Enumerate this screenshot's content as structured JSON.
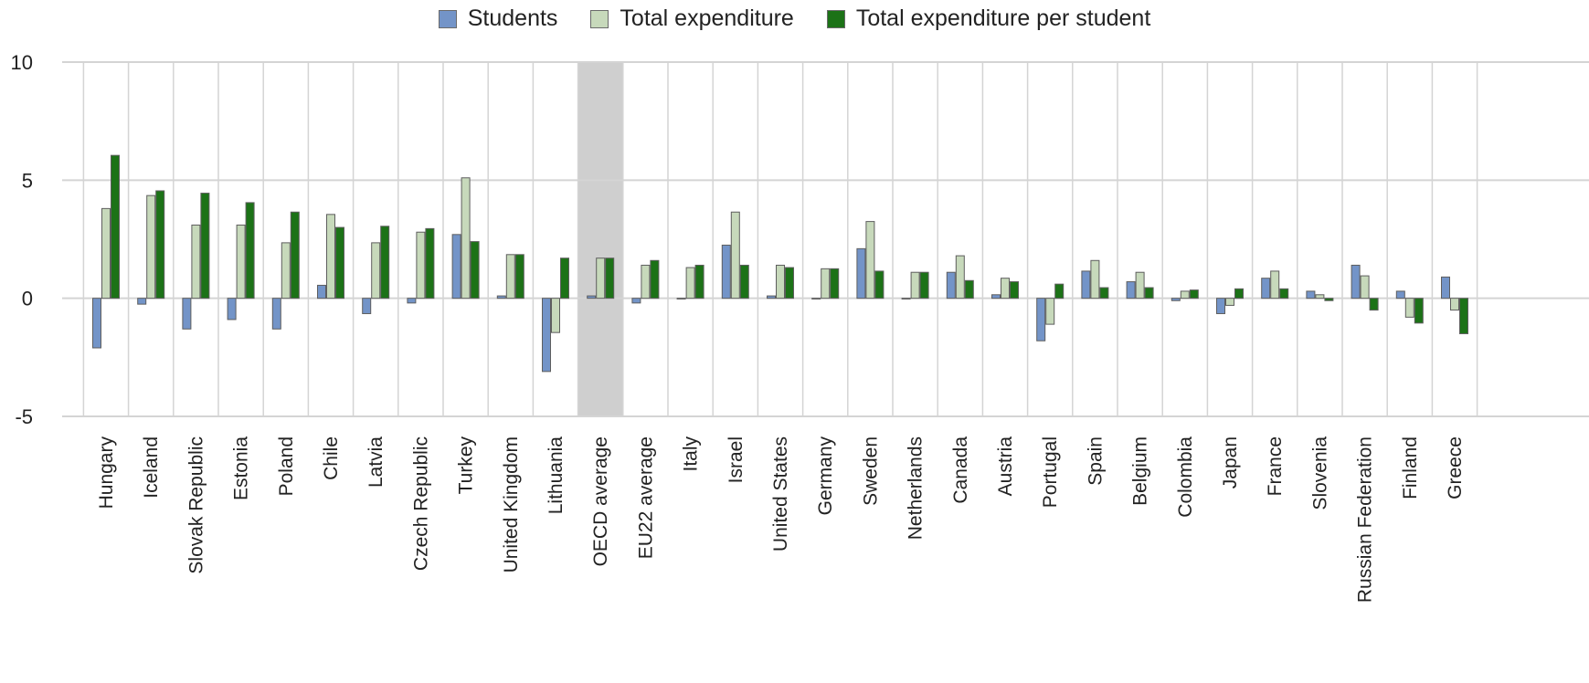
{
  "chart_data": {
    "type": "bar",
    "categories": [
      "Hungary",
      "Iceland",
      "Slovak Republic",
      "Estonia",
      "Poland",
      "Chile",
      "Latvia",
      "Czech Republic",
      "Turkey",
      "United Kingdom",
      "Lithuania",
      "OECD average",
      "EU22 average",
      "Italy",
      "Israel",
      "United States",
      "Germany",
      "Sweden",
      "Netherlands",
      "Canada",
      "Austria",
      "Portugal",
      "Spain",
      "Belgium",
      "Colombia",
      "Japan",
      "France",
      "Slovenia",
      "Russian Federation",
      "Finland",
      "Greece"
    ],
    "highlight_category": "OECD average",
    "series": [
      {
        "name": "Students",
        "color": "#7394c8",
        "values": [
          -2.1,
          -0.25,
          -1.3,
          -0.9,
          -1.3,
          0.55,
          -0.65,
          -0.2,
          2.7,
          0.1,
          -3.1,
          0.1,
          -0.2,
          0.0,
          2.25,
          0.1,
          0.0,
          2.1,
          0.0,
          1.1,
          0.15,
          -1.8,
          1.15,
          0.7,
          -0.1,
          -0.65,
          0.85,
          0.3,
          1.4,
          0.3,
          0.9
        ]
      },
      {
        "name": "Total expenditure",
        "color": "#c7d9bb",
        "values": [
          3.8,
          4.35,
          3.1,
          3.1,
          2.35,
          3.55,
          2.35,
          2.8,
          5.1,
          1.85,
          -1.45,
          1.7,
          1.4,
          1.3,
          3.65,
          1.4,
          1.25,
          3.25,
          1.1,
          1.8,
          0.85,
          -1.1,
          1.6,
          1.1,
          0.3,
          -0.3,
          1.15,
          0.15,
          0.95,
          -0.8,
          -0.5
        ]
      },
      {
        "name": "Total expenditure per student",
        "color": "#1c7217",
        "values": [
          6.05,
          4.55,
          4.45,
          4.05,
          3.65,
          3.0,
          3.05,
          2.95,
          2.4,
          1.85,
          1.7,
          1.7,
          1.6,
          1.4,
          1.4,
          1.3,
          1.25,
          1.15,
          1.1,
          0.75,
          0.7,
          0.6,
          0.45,
          0.45,
          0.35,
          0.4,
          0.4,
          -0.1,
          -0.5,
          -1.05,
          -1.5
        ]
      }
    ],
    "yticks": [
      10,
      5,
      0,
      -5
    ],
    "ylim": [
      -5,
      10
    ],
    "grid": true,
    "legend_position": "top-center"
  }
}
